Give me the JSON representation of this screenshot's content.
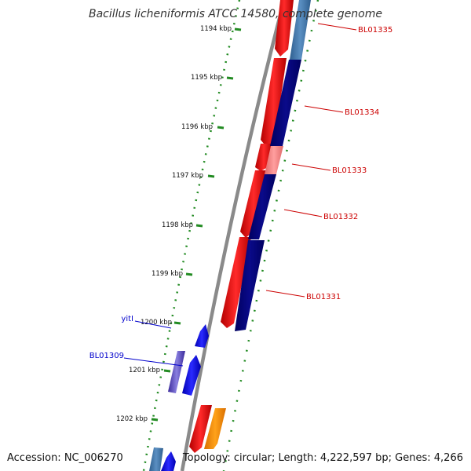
{
  "title": "Bacillus licheniformis ATCC 14580, complete genome",
  "accession_label": "Accession: NC_006270",
  "summary_label": "Topology: circular; Length: 4,222,597 bp; Genes: 4,266",
  "ticks": [
    {
      "label": "1194 kbp"
    },
    {
      "label": "1195 kbp"
    },
    {
      "label": "1196 kbp"
    },
    {
      "label": "1197 kbp"
    },
    {
      "label": "1198 kbp"
    },
    {
      "label": "1199 kbp"
    },
    {
      "label": "1200 kbp"
    },
    {
      "label": "1201 kbp"
    },
    {
      "label": "1202 kbp"
    }
  ],
  "gene_labels": [
    {
      "name": "BL01335",
      "color": "#cc0000"
    },
    {
      "name": "BL01334",
      "color": "#cc0000"
    },
    {
      "name": "BL01333",
      "color": "#cc0000"
    },
    {
      "name": "BL01332",
      "color": "#cc0000"
    },
    {
      "name": "BL01331",
      "color": "#cc0000"
    },
    {
      "name": "yitI",
      "color": "#0000cc"
    },
    {
      "name": "BL01309",
      "color": "#0000cc"
    }
  ],
  "colors": {
    "backbone": "#888888",
    "tick_green": "#228b22",
    "cds_red": "#ff0000",
    "cds_dark_red": "#cc0000",
    "cds_navy": "#000080",
    "cds_steel": "#4682b4",
    "cds_pink": "#f08080",
    "cds_blue": "#0000ff",
    "cds_orange": "#ff8c00",
    "cds_purple": "#6a5acd"
  }
}
